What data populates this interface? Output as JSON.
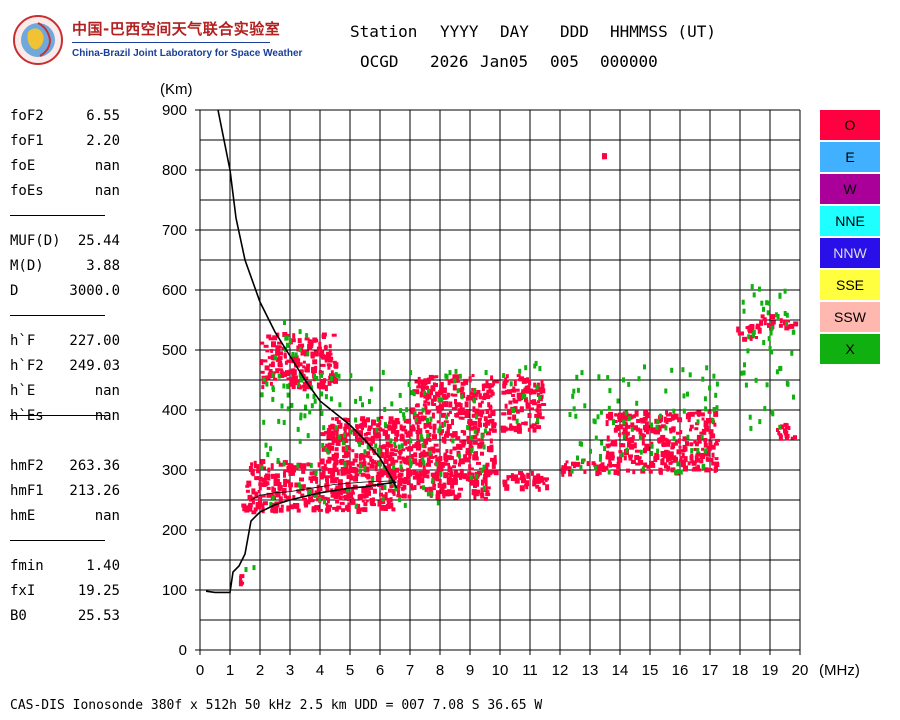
{
  "logo": {
    "title_cn": "中国-巴西空间天气联合实验室",
    "title_en": "China-Brazil Joint Laboratory for Space Weather"
  },
  "header": {
    "labels": {
      "station": "Station",
      "yyyy": "YYYY",
      "day": "DAY",
      "ddd": "DDD",
      "hhmmss": "HHMMSS (UT)"
    },
    "values": {
      "station": "OCGD",
      "yyyy": "2026",
      "day": "Jan05",
      "ddd": "005",
      "hhmmss": "000000"
    }
  },
  "params": [
    {
      "label": "foF2",
      "value": "6.55"
    },
    {
      "label": "foF1",
      "value": "2.20"
    },
    {
      "label": "foE",
      "value": "nan"
    },
    {
      "label": "foEs",
      "value": "nan"
    },
    {
      "label": "MUF(D)",
      "value": "25.44"
    },
    {
      "label": "M(D)",
      "value": "3.88"
    },
    {
      "label": "D",
      "value": "3000.0"
    },
    {
      "label": "h`F",
      "value": "227.00"
    },
    {
      "label": "h`F2",
      "value": "249.03"
    },
    {
      "label": "h`E",
      "value": "nan"
    },
    {
      "label": "h`Es",
      "value": "nan"
    },
    {
      "label": "hmF2",
      "value": "263.36"
    },
    {
      "label": "hmF1",
      "value": "213.26"
    },
    {
      "label": "hmE",
      "value": "nan"
    },
    {
      "label": "fmin",
      "value": "1.40"
    },
    {
      "label": "fxI",
      "value": "19.25"
    },
    {
      "label": "B0",
      "value": "25.53"
    }
  ],
  "legend": [
    {
      "label": "O",
      "color": "#ff0040"
    },
    {
      "label": "E",
      "color": "#40b0ff"
    },
    {
      "label": "W",
      "color": "#aa0099"
    },
    {
      "label": "NNE",
      "color": "#20ffff"
    },
    {
      "label": "NNW",
      "color": "#2a10e8"
    },
    {
      "label": "SSE",
      "color": "#ffff40"
    },
    {
      "label": "SSW",
      "color": "#ffb8b0"
    },
    {
      "label": "X",
      "color": "#10b010"
    }
  ],
  "footer": "CAS-DIS Ionosonde 380f x 512h 50 kHz 2.5 km UDD = 007 7.08 S 36.65 W",
  "chart_data": {
    "type": "scatter",
    "xlabel": "(MHz)",
    "ylabel": "(Km)",
    "xlim": [
      0,
      20
    ],
    "ylim": [
      0,
      900
    ],
    "x_ticks": [
      0,
      1,
      2,
      3,
      4,
      5,
      6,
      7,
      8,
      9,
      10,
      11,
      12,
      13,
      14,
      15,
      16,
      17,
      18,
      19,
      20
    ],
    "y_ticks": [
      0,
      100,
      200,
      300,
      400,
      500,
      600,
      700,
      800,
      900
    ],
    "grid": true,
    "echo_clusters": [
      {
        "polarization": "O",
        "f": [
          1.1,
          1.4
        ],
        "h": [
          110,
          130
        ]
      },
      {
        "polarization": "X",
        "f": [
          1.4,
          1.8
        ],
        "h": [
          95,
          150
        ]
      },
      {
        "polarization": "O",
        "f": [
          1.3,
          2.0
        ],
        "h": [
          230,
          260
        ]
      },
      {
        "polarization": "O",
        "f": [
          1.5,
          6.5
        ],
        "h": [
          235,
          320
        ]
      },
      {
        "polarization": "O",
        "f": [
          4.0,
          7.0
        ],
        "h": [
          290,
          390
        ]
      },
      {
        "polarization": "O",
        "f": [
          6.5,
          9.6
        ],
        "h": [
          255,
          300
        ]
      },
      {
        "polarization": "O",
        "f": [
          7.0,
          9.8
        ],
        "h": [
          290,
          460
        ]
      },
      {
        "polarization": "O",
        "f": [
          10.0,
          11.6
        ],
        "h": [
          270,
          300
        ]
      },
      {
        "polarization": "O",
        "f": [
          10.0,
          11.4
        ],
        "h": [
          370,
          460
        ]
      },
      {
        "polarization": "O",
        "f": [
          12.0,
          13.5
        ],
        "h": [
          295,
          320
        ]
      },
      {
        "polarization": "O",
        "f": [
          13.5,
          17.2
        ],
        "h": [
          300,
          400
        ]
      },
      {
        "polarization": "O",
        "f": [
          17.8,
          18.6
        ],
        "h": [
          515,
          545
        ]
      },
      {
        "polarization": "O",
        "f": [
          18.6,
          19.8
        ],
        "h": [
          540,
          560
        ]
      },
      {
        "polarization": "O",
        "f": [
          19.2,
          20.0
        ],
        "h": [
          355,
          380
        ]
      },
      {
        "polarization": "O",
        "f": [
          2.0,
          4.5
        ],
        "h": [
          440,
          530
        ]
      },
      {
        "polarization": "X",
        "f": [
          2.3,
          3.6
        ],
        "h": [
          380,
          560
        ]
      },
      {
        "polarization": "X",
        "f": [
          2.0,
          9.5
        ],
        "h": [
          240,
          470
        ]
      },
      {
        "polarization": "X",
        "f": [
          10.0,
          11.3
        ],
        "h": [
          380,
          500
        ]
      },
      {
        "polarization": "X",
        "f": [
          12.2,
          17.2
        ],
        "h": [
          300,
          480
        ]
      },
      {
        "polarization": "X",
        "f": [
          18.0,
          20.0
        ],
        "h": [
          360,
          610
        ]
      },
      {
        "polarization": "O",
        "f": [
          13.4,
          13.4
        ],
        "h": [
          828,
          828
        ]
      }
    ],
    "profile_curve": {
      "f": [
        0.6,
        1.0,
        1.2,
        1.5,
        2.0,
        2.5,
        3.0,
        3.5,
        4.0,
        4.5,
        5.0,
        5.5,
        6.0,
        6.4,
        6.55
      ],
      "h": [
        900,
        800,
        720,
        650,
        580,
        530,
        490,
        450,
        415,
        395,
        375,
        350,
        320,
        285,
        270
      ]
    },
    "trace_curve": {
      "f": [
        0.2,
        0.5,
        1.0,
        1.1,
        1.3,
        1.5,
        1.7,
        2.0,
        2.5,
        3.0,
        3.5,
        4.0,
        4.5,
        5.0,
        5.5,
        6.0,
        6.55
      ],
      "h": [
        98,
        96,
        96,
        130,
        140,
        160,
        215,
        230,
        242,
        250,
        256,
        262,
        266,
        270,
        272,
        276,
        280
      ]
    },
    "virtual_trace_curve": {
      "f": [
        1.7,
        2.0,
        2.5,
        3.0,
        3.5,
        4.0,
        4.5,
        5.0,
        5.5,
        6.0,
        6.5
      ],
      "h": [
        250,
        258,
        262,
        264,
        268,
        272,
        276,
        278,
        280,
        281,
        282
      ]
    }
  }
}
